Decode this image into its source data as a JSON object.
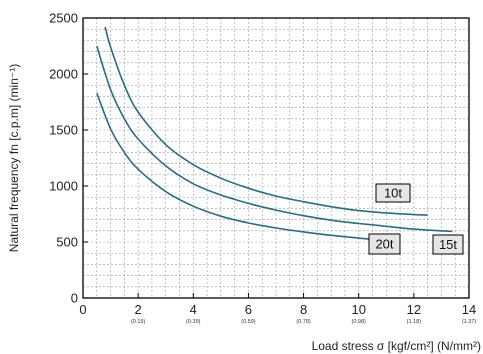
{
  "chart_data": {
    "type": "line",
    "title": "",
    "xlabel": "Load stress σ [kgf/cm²] (N/mm²)",
    "ylabel": "Natural frequency fn [c.p.m] (min⁻¹)",
    "xlim": [
      0,
      14
    ],
    "ylim": [
      0,
      2500
    ],
    "grid": "dashed",
    "x_ticks": [
      0,
      2,
      4,
      6,
      8,
      10,
      12,
      14
    ],
    "x_tick_labels": [
      "0",
      "2",
      "4",
      "6",
      "8",
      "10",
      "12",
      "14"
    ],
    "x_sub_labels": [
      "",
      "(0.19)",
      "(0.39)",
      "(0.59)",
      "(0.78)",
      "(0.98)",
      "(1.18)",
      "(1.37)"
    ],
    "y_ticks": [
      0,
      500,
      1000,
      1500,
      2000,
      2500
    ],
    "y_tick_labels": [
      "0",
      "500",
      "1000",
      "1500",
      "2000",
      "2500"
    ],
    "line_color": "#2d6b80",
    "label_box_color": "#e6e6e6",
    "series": [
      {
        "name": "10t",
        "points": [
          [
            0.8,
            2420
          ],
          [
            1,
            2240
          ],
          [
            1.5,
            1900
          ],
          [
            2,
            1660
          ],
          [
            3,
            1370
          ],
          [
            4,
            1190
          ],
          [
            5,
            1070
          ],
          [
            6,
            980
          ],
          [
            7,
            910
          ],
          [
            8,
            860
          ],
          [
            9,
            815
          ],
          [
            10,
            780
          ],
          [
            11,
            760
          ],
          [
            12,
            745
          ],
          [
            12.5,
            740
          ]
        ]
      },
      {
        "name": "15t",
        "points": [
          [
            0.5,
            2250
          ],
          [
            1,
            1860
          ],
          [
            1.5,
            1600
          ],
          [
            2,
            1420
          ],
          [
            3,
            1180
          ],
          [
            4,
            1020
          ],
          [
            5,
            920
          ],
          [
            6,
            845
          ],
          [
            7,
            785
          ],
          [
            8,
            735
          ],
          [
            9,
            695
          ],
          [
            10,
            665
          ],
          [
            11,
            640
          ],
          [
            12,
            615
          ],
          [
            13,
            600
          ],
          [
            13.4,
            595
          ]
        ]
      },
      {
        "name": "20t",
        "points": [
          [
            0.5,
            1830
          ],
          [
            1,
            1510
          ],
          [
            1.5,
            1300
          ],
          [
            2,
            1150
          ],
          [
            3,
            950
          ],
          [
            4,
            820
          ],
          [
            5,
            730
          ],
          [
            6,
            670
          ],
          [
            7,
            625
          ],
          [
            8,
            590
          ],
          [
            9,
            560
          ],
          [
            10,
            535
          ],
          [
            10.4,
            525
          ]
        ]
      }
    ]
  }
}
